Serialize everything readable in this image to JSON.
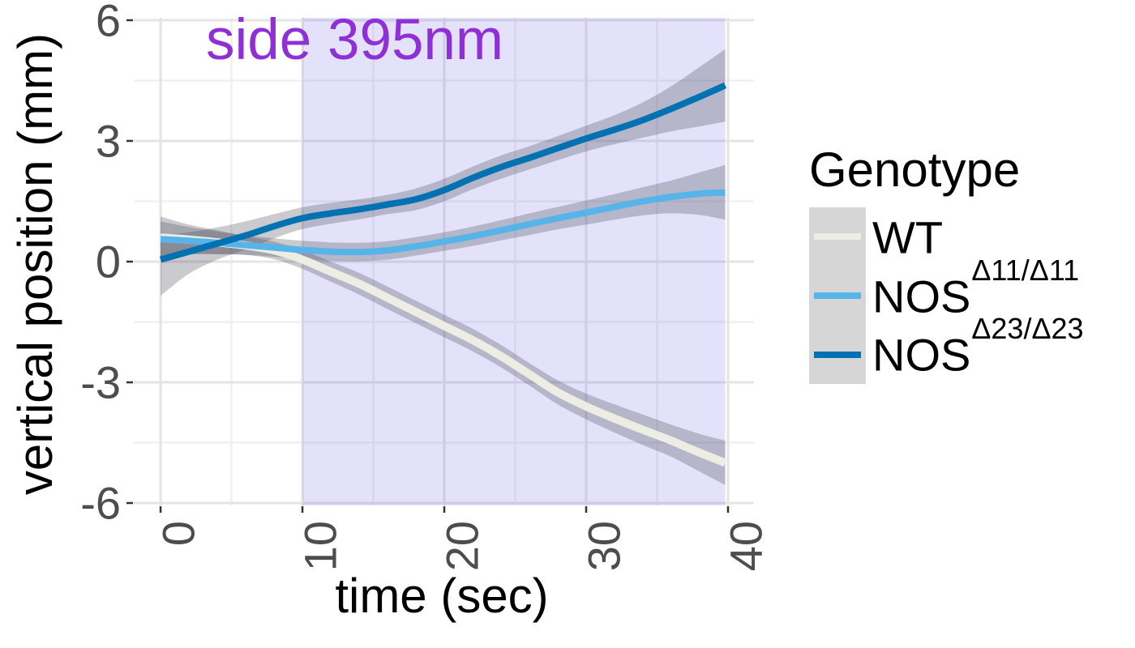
{
  "chart_data": {
    "type": "line",
    "title": "side 395nm",
    "title_color": "#8F2FD6",
    "xlabel": "time (sec)",
    "ylabel": "vertical position (mm)",
    "xlim": [
      -1.89,
      41.83
    ],
    "ylim": [
      -6.06,
      6.06
    ],
    "x_ticks": [
      0,
      10,
      20,
      30,
      40
    ],
    "x_minor_ticks": [
      5,
      15,
      25,
      35
    ],
    "y_ticks": [
      -6,
      -3,
      0,
      3,
      6
    ],
    "y_minor_ticks": [
      -4.5,
      -1.5,
      1.5,
      4.5
    ],
    "grid": true,
    "legend_position": "right",
    "legend_title": "Genotype",
    "stimulus_window": {
      "t_start": 10,
      "t_end": 39.8,
      "fill": "rgba(100,96,228,0.18)"
    },
    "band_fill": "rgba(80,80,95,0.30)",
    "grid_major_color": "#E4E4E4",
    "grid_minor_color": "#F0F0F0",
    "tick_color": "#333333",
    "tick_label_color": "#4D4D4D",
    "x": [
      0,
      2,
      4,
      6,
      8,
      10,
      12,
      14,
      16,
      18,
      20,
      22,
      24,
      26,
      28,
      30,
      32,
      34,
      36,
      38,
      39.8
    ],
    "series": [
      {
        "id": "wt",
        "label_base": "WT",
        "label_sup": "",
        "color": "#EEEDE3",
        "line_width": 10,
        "y": [
          0.6,
          0.55,
          0.48,
          0.4,
          0.28,
          0.05,
          -0.25,
          -0.55,
          -0.9,
          -1.25,
          -1.6,
          -1.95,
          -2.35,
          -2.8,
          -3.25,
          -3.6,
          -3.9,
          -4.18,
          -4.45,
          -4.75,
          -5.0
        ],
        "ci_upper": [
          1.12,
          0.92,
          0.78,
          0.63,
          0.5,
          0.28,
          0.0,
          -0.28,
          -0.62,
          -0.97,
          -1.32,
          -1.67,
          -2.07,
          -2.52,
          -2.95,
          -3.28,
          -3.55,
          -3.8,
          -4.05,
          -4.28,
          -4.45
        ],
        "ci_lower": [
          0.08,
          0.18,
          0.18,
          0.17,
          0.06,
          -0.18,
          -0.5,
          -0.82,
          -1.18,
          -1.53,
          -1.88,
          -2.23,
          -2.63,
          -3.08,
          -3.55,
          -3.92,
          -4.25,
          -4.56,
          -4.85,
          -5.22,
          -5.55
        ]
      },
      {
        "id": "nos-d11",
        "label_base": "NOS",
        "label_sup": "Δ11/Δ11",
        "color": "#56B4E9",
        "line_width": 8,
        "y": [
          0.56,
          0.52,
          0.47,
          0.41,
          0.35,
          0.29,
          0.25,
          0.24,
          0.28,
          0.38,
          0.5,
          0.63,
          0.78,
          0.93,
          1.08,
          1.22,
          1.36,
          1.5,
          1.61,
          1.69,
          1.72
        ],
        "ci_upper": [
          1.0,
          0.86,
          0.75,
          0.65,
          0.58,
          0.52,
          0.48,
          0.47,
          0.51,
          0.61,
          0.73,
          0.87,
          1.03,
          1.2,
          1.36,
          1.52,
          1.68,
          1.85,
          2.02,
          2.22,
          2.4
        ],
        "ci_lower": [
          0.12,
          0.18,
          0.19,
          0.17,
          0.12,
          0.06,
          0.02,
          0.01,
          0.05,
          0.15,
          0.27,
          0.39,
          0.53,
          0.66,
          0.8,
          0.92,
          1.04,
          1.15,
          1.2,
          1.16,
          1.04
        ]
      },
      {
        "id": "nos-d23",
        "label_base": "NOS",
        "label_sup": "Δ23/Δ23",
        "color": "#0072B2",
        "line_width": 8,
        "y": [
          0.05,
          0.25,
          0.45,
          0.65,
          0.88,
          1.08,
          1.2,
          1.3,
          1.42,
          1.55,
          1.78,
          2.08,
          2.35,
          2.58,
          2.82,
          3.06,
          3.28,
          3.52,
          3.8,
          4.1,
          4.38
        ],
        "ci_upper": [
          0.65,
          0.73,
          0.85,
          1.0,
          1.18,
          1.35,
          1.46,
          1.55,
          1.66,
          1.82,
          2.06,
          2.36,
          2.64,
          2.87,
          3.12,
          3.38,
          3.64,
          3.96,
          4.36,
          4.84,
          5.28
        ],
        "ci_lower": [
          -0.85,
          -0.3,
          0.05,
          0.3,
          0.58,
          0.81,
          0.94,
          1.05,
          1.18,
          1.28,
          1.5,
          1.8,
          2.06,
          2.29,
          2.52,
          2.74,
          2.92,
          3.08,
          3.24,
          3.36,
          3.48
        ]
      }
    ]
  }
}
